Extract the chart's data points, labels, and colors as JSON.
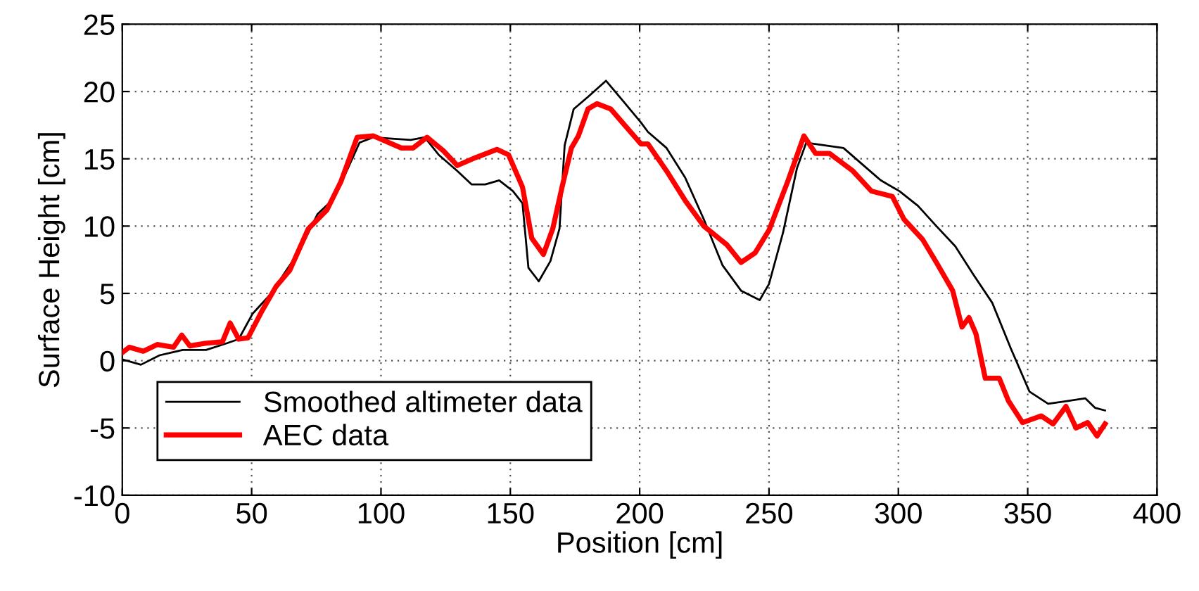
{
  "chart_data": {
    "type": "line",
    "xlabel": "Position [cm]",
    "ylabel": "Surface Height [cm]",
    "xlim": [
      0,
      400
    ],
    "ylim": [
      -10,
      25
    ],
    "xticks": [
      0,
      50,
      100,
      150,
      200,
      250,
      300,
      350,
      400
    ],
    "yticks": [
      -10,
      -5,
      0,
      5,
      10,
      15,
      20,
      25
    ],
    "grid": true,
    "legend": "bottom left",
    "series": [
      {
        "name": "Smoothed altimeter data",
        "color": "#000000",
        "line_style": "solid",
        "x": [
          0,
          7.2,
          14.4,
          23.4,
          32.4,
          40.5,
          45,
          50.4,
          57.6,
          63,
          68.3,
          75.5,
          81,
          86.3,
          91.7,
          97,
          104.3,
          111.5,
          116.9,
          122.3,
          129.5,
          135,
          140.3,
          145.7,
          151,
          154.7,
          157,
          161,
          165.5,
          169,
          171,
          174.5,
          180,
          187,
          194,
          200.5,
          203.2,
          210.4,
          217.6,
          224.8,
          232,
          239.2,
          246.4,
          250,
          255.4,
          260.8,
          264.4,
          271.6,
          278.8,
          286,
          293.2,
          300.4,
          307.6,
          314.7,
          322,
          329,
          336.3,
          343.5,
          350.7,
          357.9,
          365.1,
          372.3,
          376,
          379.9
        ],
        "values": [
          0.1,
          -0.3,
          0.4,
          0.8,
          0.8,
          1.3,
          1.6,
          3.5,
          5,
          6.6,
          8.1,
          10.9,
          11.9,
          13.9,
          16.2,
          16.6,
          16.5,
          16.4,
          16.6,
          15.3,
          14.1,
          13.1,
          13.1,
          13.4,
          12.6,
          11.7,
          6.9,
          5.9,
          7.4,
          9.8,
          16,
          18.7,
          19.6,
          20.8,
          19.2,
          17.7,
          17,
          15.8,
          13.6,
          10.5,
          7.1,
          5.2,
          4.5,
          5.7,
          9.5,
          14.3,
          16.2,
          16,
          15.8,
          14.6,
          13.4,
          12.6,
          11.5,
          10,
          8.5,
          6.4,
          4.3,
          0.9,
          -2.3,
          -3.2,
          -3,
          -2.8,
          -3.5,
          -3.7
        ]
      },
      {
        "name": "AEC data",
        "color": "#ff0000",
        "line_style": "solid",
        "x": [
          0,
          2.7,
          8.1,
          13.5,
          19.8,
          23,
          26.1,
          32.4,
          38.7,
          41.7,
          45,
          48.6,
          54,
          59.4,
          64.7,
          71.9,
          79.1,
          84.5,
          90.8,
          97.1,
          107.9,
          112.4,
          117.8,
          124.1,
          129.5,
          136.7,
          144.8,
          149.3,
          154.7,
          158.3,
          162.8,
          166.4,
          170,
          173.6,
          176.3,
          180,
          183.5,
          188.8,
          194.2,
          200.5,
          203.2,
          210.4,
          217.6,
          224.8,
          233.8,
          239.2,
          244.6,
          250,
          257.2,
          263.5,
          268,
          273.4,
          282.4,
          289.6,
          297.7,
          302.2,
          309.4,
          314.7,
          321,
          324.6,
          327.3,
          330,
          333.6,
          339,
          342.6,
          348,
          355.2,
          359.8,
          364.8,
          368.7,
          373.2,
          376.8,
          379.9
        ],
        "values": [
          0.6,
          1.0,
          0.7,
          1.2,
          1.0,
          1.9,
          1.1,
          1.3,
          1.4,
          2.8,
          1.6,
          1.7,
          3.7,
          5.5,
          6.7,
          9.8,
          11.2,
          13.3,
          16.6,
          16.7,
          15.8,
          15.8,
          16.6,
          15.6,
          14.5,
          15.1,
          15.7,
          15.3,
          12.9,
          9.1,
          7.9,
          9.8,
          12.9,
          15.8,
          16.7,
          18.7,
          19.1,
          18.7,
          17.5,
          16.1,
          16.1,
          14.1,
          11.9,
          10,
          8.6,
          7.3,
          8,
          9.7,
          13.3,
          16.7,
          15.4,
          15.4,
          14.1,
          12.6,
          12.2,
          10.5,
          9,
          7.3,
          5.2,
          2.5,
          3.2,
          2,
          -1.3,
          -1.3,
          -3,
          -4.6,
          -4.1,
          -4.7,
          -3.4,
          -5,
          -4.6,
          -5.6,
          -4.7
        ]
      }
    ]
  }
}
